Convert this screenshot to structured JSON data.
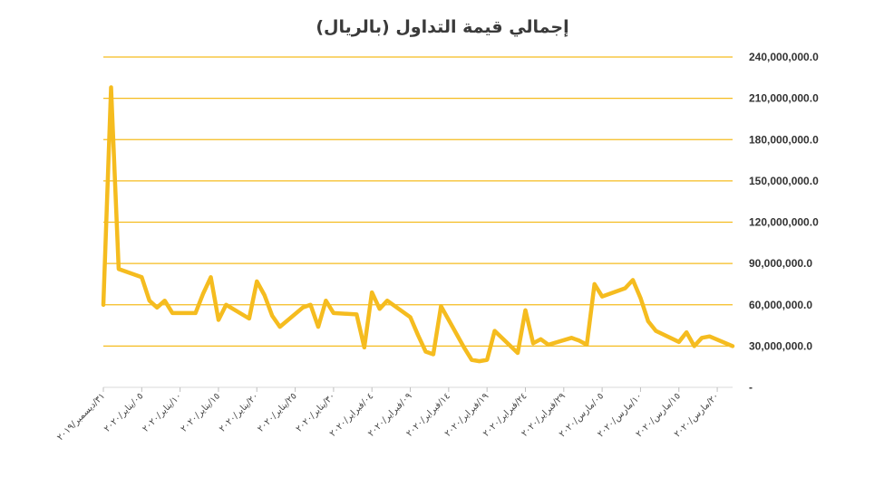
{
  "chart_data": {
    "type": "line",
    "title": "إجمالي قيمة التداول (بالريال)",
    "xlabel": "",
    "ylabel": "",
    "ylim": [
      0,
      240000000
    ],
    "y_ticks": [
      0,
      30000000,
      60000000,
      90000000,
      120000000,
      150000000,
      180000000,
      210000000,
      240000000
    ],
    "y_tick_labels": [
      "-",
      "30,000,000.0",
      "60,000,000.0",
      "90,000,000.0",
      "120,000,000.0",
      "150,000,000.0",
      "180,000,000.0",
      "210,000,000.0",
      "240,000,000.0"
    ],
    "y_axis_side": "right",
    "grid": true,
    "legend": "none",
    "x_tick_labels": [
      "٣١/ديسمبر/٢٠١٩",
      "٠٥/يناير/٢٠٢٠",
      "١٠/يناير/٢٠٢٠",
      "١٥/يناير/٢٠٢٠",
      "٢٠/يناير/٢٠٢٠",
      "٢٥/يناير/٢٠٢٠",
      "٣٠/يناير/٢٠٢٠",
      "٠٤/فبراير/٢٠٢٠",
      "٠٩/فبراير/٢٠٢٠",
      "١٤/فبراير/٢٠٢٠",
      "١٩/فبراير/٢٠٢٠",
      "٢٤/فبراير/٢٠٢٠",
      "٢٩/فبراير/٢٠٢٠",
      "٠٥/مارس/٢٠٢٠",
      "١٠/مارس/٢٠٢٠",
      "١٥/مارس/٢٠٢٠",
      "٢٠/مارس/٢٠٢٠"
    ],
    "x_tick_dates": [
      "2019-12-31",
      "2020-01-05",
      "2020-01-10",
      "2020-01-15",
      "2020-01-20",
      "2020-01-25",
      "2020-01-30",
      "2020-02-04",
      "2020-02-09",
      "2020-02-14",
      "2020-02-19",
      "2020-02-24",
      "2020-02-29",
      "2020-03-05",
      "2020-03-10",
      "2020-03-15",
      "2020-03-20"
    ],
    "series": [
      {
        "name": "",
        "color": "#F5BC1F",
        "points": [
          [
            "2019-12-31",
            60000000
          ],
          [
            "2020-01-01",
            218000000
          ],
          [
            "2020-01-02",
            86000000
          ],
          [
            "2020-01-05",
            80000000
          ],
          [
            "2020-01-06",
            63000000
          ],
          [
            "2020-01-07",
            58000000
          ],
          [
            "2020-01-08",
            63000000
          ],
          [
            "2020-01-09",
            54000000
          ],
          [
            "2020-01-12",
            54000000
          ],
          [
            "2020-01-13",
            68000000
          ],
          [
            "2020-01-14",
            80000000
          ],
          [
            "2020-01-15",
            49000000
          ],
          [
            "2020-01-16",
            60000000
          ],
          [
            "2020-01-19",
            50000000
          ],
          [
            "2020-01-20",
            77000000
          ],
          [
            "2020-01-21",
            67000000
          ],
          [
            "2020-01-22",
            52000000
          ],
          [
            "2020-01-23",
            44000000
          ],
          [
            "2020-01-26",
            58000000
          ],
          [
            "2020-01-27",
            60000000
          ],
          [
            "2020-01-28",
            44000000
          ],
          [
            "2020-01-29",
            63000000
          ],
          [
            "2020-01-30",
            54000000
          ],
          [
            "2020-02-02",
            53000000
          ],
          [
            "2020-02-03",
            29000000
          ],
          [
            "2020-02-04",
            69000000
          ],
          [
            "2020-02-05",
            57000000
          ],
          [
            "2020-02-06",
            63000000
          ],
          [
            "2020-02-09",
            51000000
          ],
          [
            "2020-02-10",
            38000000
          ],
          [
            "2020-02-11",
            26000000
          ],
          [
            "2020-02-12",
            24000000
          ],
          [
            "2020-02-13",
            59000000
          ],
          [
            "2020-02-16",
            29000000
          ],
          [
            "2020-02-17",
            20000000
          ],
          [
            "2020-02-18",
            19000000
          ],
          [
            "2020-02-19",
            20000000
          ],
          [
            "2020-02-20",
            41000000
          ],
          [
            "2020-02-23",
            25000000
          ],
          [
            "2020-02-24",
            56000000
          ],
          [
            "2020-02-25",
            32000000
          ],
          [
            "2020-02-26",
            35000000
          ],
          [
            "2020-02-27",
            31000000
          ],
          [
            "2020-03-01",
            36000000
          ],
          [
            "2020-03-02",
            34000000
          ],
          [
            "2020-03-03",
            31000000
          ],
          [
            "2020-03-04",
            75000000
          ],
          [
            "2020-03-05",
            66000000
          ],
          [
            "2020-03-08",
            72000000
          ],
          [
            "2020-03-09",
            78000000
          ],
          [
            "2020-03-10",
            65000000
          ],
          [
            "2020-03-11",
            48000000
          ],
          [
            "2020-03-12",
            41000000
          ],
          [
            "2020-03-15",
            33000000
          ],
          [
            "2020-03-16",
            40000000
          ],
          [
            "2020-03-17",
            30000000
          ],
          [
            "2020-03-18",
            36000000
          ],
          [
            "2020-03-19",
            37000000
          ],
          [
            "2020-03-22",
            30000000
          ]
        ]
      }
    ]
  }
}
